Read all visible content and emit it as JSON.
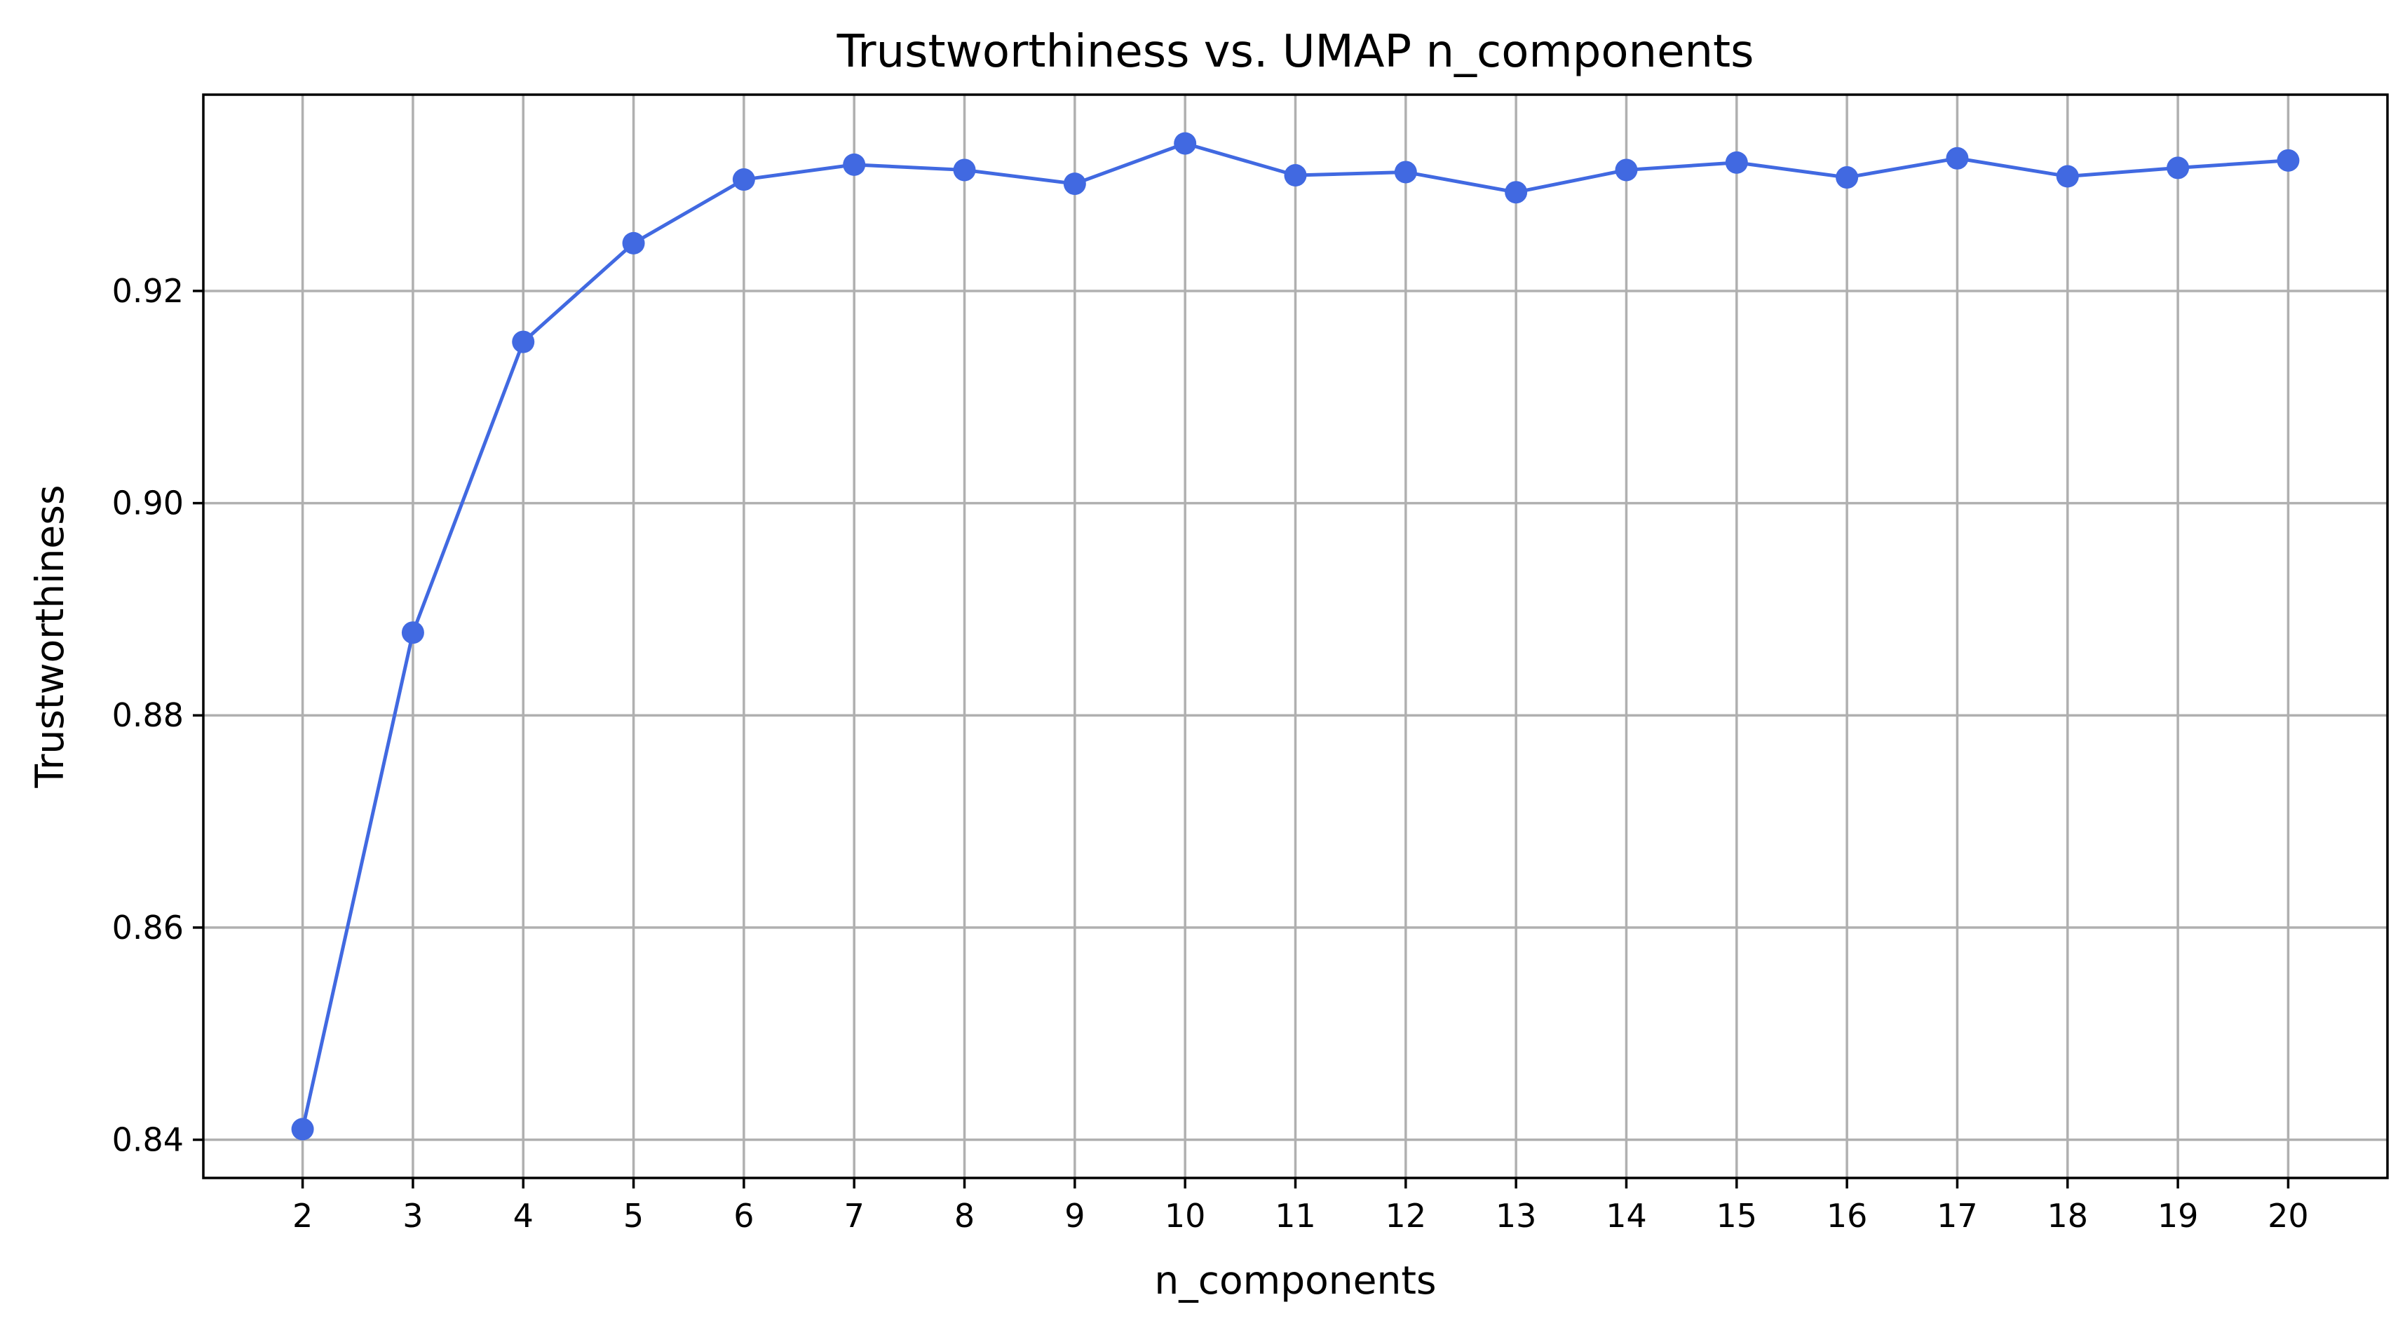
{
  "chart_data": {
    "type": "line",
    "title": "Trustworthiness vs. UMAP n_components",
    "xlabel": "n_components",
    "ylabel": "Trustworthiness",
    "x": [
      2,
      3,
      4,
      5,
      6,
      7,
      8,
      9,
      10,
      11,
      12,
      13,
      14,
      15,
      16,
      17,
      18,
      19,
      20
    ],
    "series": [
      {
        "values": [
          0.841,
          0.8878,
          0.9152,
          0.9245,
          0.9305,
          0.9319,
          0.9314,
          0.9301,
          0.9339,
          0.9309,
          0.9312,
          0.9293,
          0.9314,
          0.9321,
          0.9307,
          0.9325,
          0.9308,
          0.9316,
          0.9323
        ],
        "color": "#4169e1",
        "marker": "circle"
      }
    ],
    "xticks": [
      "2",
      "3",
      "4",
      "5",
      "6",
      "7",
      "8",
      "9",
      "10",
      "11",
      "12",
      "13",
      "14",
      "15",
      "16",
      "17",
      "18",
      "19",
      "20"
    ],
    "yticks": [
      "0.84",
      "0.86",
      "0.88",
      "0.90",
      "0.92"
    ],
    "xlim": [
      1.1,
      20.9
    ],
    "ylim": [
      0.8364,
      0.9385
    ],
    "grid": true,
    "legend": false
  }
}
